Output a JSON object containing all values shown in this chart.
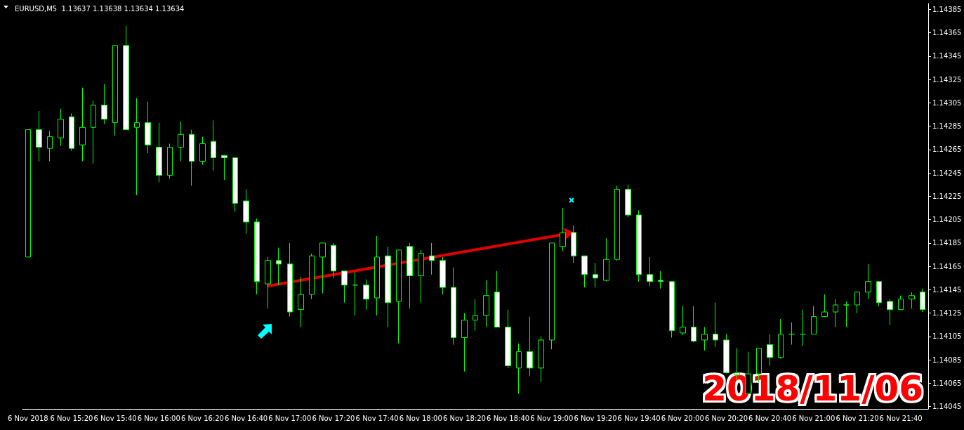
{
  "chart_data": {
    "type": "candlestick",
    "title": "EURUSD,M5  1.13637 1.13638 1.13634 1.13634",
    "categories": [
      "6 Nov 2018",
      null,
      null,
      null,
      "6 Nov 15:20",
      null,
      null,
      null,
      "6 Nov 15:40",
      null,
      null,
      null,
      "6 Nov 16:00",
      null,
      null,
      null,
      "6 Nov 16:20",
      null,
      null,
      null,
      "6 Nov 16:40",
      null,
      null,
      null,
      "6 Nov 17:00",
      null,
      null,
      null,
      "6 Nov 17:20",
      null,
      null,
      null,
      "6 Nov 17:40",
      null,
      null,
      null,
      "6 Nov 18:00",
      null,
      null,
      null,
      "6 Nov 18:20",
      null,
      null,
      null,
      "6 Nov 18:40",
      null,
      null,
      null,
      "6 Nov 19:00",
      null,
      null,
      null,
      "6 Nov 19:20",
      null,
      null,
      null,
      "6 Nov 19:40",
      null,
      null,
      null,
      "6 Nov 20:00",
      null,
      null,
      null,
      "6 Nov 20:20",
      null,
      null,
      null,
      "6 Nov 20:40",
      null,
      null,
      null,
      "6 Nov 21:00",
      null,
      null,
      null,
      "6 Nov 21:20",
      null,
      null,
      null,
      "6 Nov 21:40",
      null,
      null
    ],
    "color": "#00ff00",
    "ohlc": [
      [
        1.14173,
        1.14282,
        1.14173,
        1.14282
      ],
      [
        1.14282,
        1.14298,
        1.14255,
        1.14267
      ],
      [
        1.14266,
        1.14281,
        1.14255,
        1.14276
      ],
      [
        1.14275,
        1.143,
        1.14268,
        1.14291
      ],
      [
        1.14293,
        1.14296,
        1.14264,
        1.14266
      ],
      [
        1.14269,
        1.14318,
        1.14255,
        1.14284
      ],
      [
        1.14284,
        1.14307,
        1.14253,
        1.14303
      ],
      [
        1.14303,
        1.14321,
        1.14287,
        1.14291
      ],
      [
        1.14288,
        1.14354,
        1.14277,
        1.14354
      ],
      [
        1.14354,
        1.14371,
        1.14282,
        1.14282
      ],
      [
        1.14284,
        1.14309,
        1.14226,
        1.14288
      ],
      [
        1.14288,
        1.14306,
        1.14262,
        1.14269
      ],
      [
        1.14267,
        1.14288,
        1.14237,
        1.14243
      ],
      [
        1.14243,
        1.1427,
        1.1424,
        1.14267
      ],
      [
        1.14267,
        1.14289,
        1.14255,
        1.14278
      ],
      [
        1.14278,
        1.14282,
        1.14234,
        1.14255
      ],
      [
        1.14255,
        1.14276,
        1.14252,
        1.1427
      ],
      [
        1.14272,
        1.1429,
        1.14247,
        1.14258
      ],
      [
        1.1426,
        1.1426,
        1.14239,
        1.14258
      ],
      [
        1.14258,
        1.14258,
        1.14212,
        1.14219
      ],
      [
        1.14221,
        1.14231,
        1.14193,
        1.14203
      ],
      [
        1.14203,
        1.14206,
        1.14141,
        1.14152
      ],
      [
        1.1415,
        1.14173,
        1.14129,
        1.1417
      ],
      [
        1.1417,
        1.14181,
        1.14149,
        1.14167
      ],
      [
        1.14167,
        1.14185,
        1.14122,
        1.14126
      ],
      [
        1.14128,
        1.14156,
        1.14113,
        1.14141
      ],
      [
        1.14141,
        1.14176,
        1.14137,
        1.14174
      ],
      [
        1.14173,
        1.14185,
        1.14142,
        1.14185
      ],
      [
        1.14183,
        1.14185,
        1.14155,
        1.14161
      ],
      [
        1.14161,
        1.14161,
        1.14134,
        1.14149
      ],
      [
        1.14149,
        1.1416,
        1.14123,
        1.14149
      ],
      [
        1.14149,
        1.14154,
        1.14128,
        1.14137
      ],
      [
        1.14138,
        1.14191,
        1.14123,
        1.14173
      ],
      [
        1.14174,
        1.14182,
        1.14113,
        1.14134
      ],
      [
        1.14135,
        1.14179,
        1.14099,
        1.14179
      ],
      [
        1.14182,
        1.14185,
        1.14129,
        1.14157
      ],
      [
        1.14157,
        1.14179,
        1.14134,
        1.14176
      ],
      [
        1.14174,
        1.14185,
        1.14158,
        1.1417
      ],
      [
        1.1417,
        1.14173,
        1.14141,
        1.14147
      ],
      [
        1.14147,
        1.14164,
        1.14098,
        1.14104
      ],
      [
        1.14104,
        1.14125,
        1.14075,
        1.14119
      ],
      [
        1.14119,
        1.14137,
        1.1411,
        1.14123
      ],
      [
        1.14123,
        1.14153,
        1.14113,
        1.1414
      ],
      [
        1.14143,
        1.14161,
        1.14113,
        1.14113
      ],
      [
        1.14113,
        1.14128,
        1.14078,
        1.1408
      ],
      [
        1.14078,
        1.14099,
        1.14056,
        1.14092
      ],
      [
        1.14092,
        1.14122,
        1.14071,
        1.14078
      ],
      [
        1.14078,
        1.14105,
        1.14066,
        1.14102
      ],
      [
        1.14102,
        1.14185,
        1.14094,
        1.14185
      ],
      [
        1.14182,
        1.14215,
        1.14178,
        1.14194
      ],
      [
        1.14194,
        1.142,
        1.14168,
        1.14174
      ],
      [
        1.14174,
        1.14174,
        1.14147,
        1.14158
      ],
      [
        1.14158,
        1.14168,
        1.14147,
        1.14155
      ],
      [
        1.14153,
        1.14189,
        1.14152,
        1.14171
      ],
      [
        1.14171,
        1.14234,
        1.1417,
        1.14231
      ],
      [
        1.14231,
        1.14235,
        1.14207,
        1.14209
      ],
      [
        1.14209,
        1.14213,
        1.14152,
        1.14158
      ],
      [
        1.14158,
        1.14173,
        1.14148,
        1.14152
      ],
      [
        1.14153,
        1.14161,
        1.14146,
        1.14152
      ],
      [
        1.14152,
        1.14152,
        1.14104,
        1.1411
      ],
      [
        1.14108,
        1.14131,
        1.14106,
        1.14113
      ],
      [
        1.14113,
        1.14131,
        1.141,
        1.14101
      ],
      [
        1.14102,
        1.14113,
        1.14093,
        1.14107
      ],
      [
        1.14107,
        1.14134,
        1.14096,
        1.14102
      ],
      [
        1.14102,
        1.14107,
        1.14074,
        1.14074
      ],
      [
        1.14074,
        1.14095,
        1.14068,
        1.14072
      ],
      [
        1.14056,
        1.14092,
        1.14054,
        1.14073
      ],
      [
        1.14073,
        1.14095,
        1.14066,
        1.14095
      ],
      [
        1.14098,
        1.14107,
        1.1408,
        1.14087
      ],
      [
        1.14087,
        1.1412,
        1.14086,
        1.14107
      ],
      [
        1.14107,
        1.14117,
        1.14098,
        1.14107
      ],
      [
        1.14107,
        1.14128,
        1.14097,
        1.14107
      ],
      [
        1.14107,
        1.14131,
        1.14107,
        1.14122
      ],
      [
        1.14122,
        1.14141,
        1.14122,
        1.14126
      ],
      [
        1.14126,
        1.14137,
        1.14113,
        1.14132
      ],
      [
        1.14132,
        1.14135,
        1.14113,
        1.14132
      ],
      [
        1.14132,
        1.14143,
        1.14125,
        1.14143
      ],
      [
        1.14143,
        1.14167,
        1.14137,
        1.14152
      ],
      [
        1.14152,
        1.14152,
        1.14131,
        1.14134
      ],
      [
        1.14135,
        1.14137,
        1.14115,
        1.14128
      ],
      [
        1.14128,
        1.1414,
        1.14128,
        1.14137
      ],
      [
        1.14137,
        1.14143,
        1.14129,
        1.1414
      ],
      [
        1.14143,
        1.14146,
        1.14126,
        1.14128
      ]
    ],
    "ylim": [
      1.14043,
      1.1439
    ],
    "yticks": [
      1.14045,
      1.14065,
      1.14085,
      1.14105,
      1.14125,
      1.14145,
      1.14165,
      1.14185,
      1.14205,
      1.14225,
      1.14245,
      1.14265,
      1.14285,
      1.14305,
      1.14325,
      1.14345,
      1.14365,
      1.14385
    ],
    "grid": false,
    "annotations": [
      "2018/11/06"
    ]
  }
}
